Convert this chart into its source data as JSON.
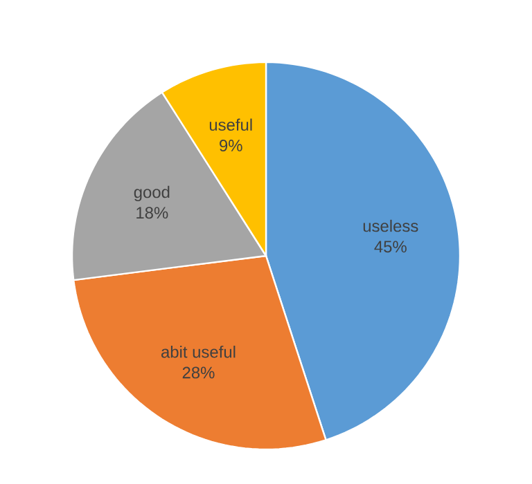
{
  "chart_data": {
    "type": "pie",
    "categories": [
      "useless",
      "abit useful",
      "good",
      "useful"
    ],
    "values": [
      45,
      28,
      18,
      9
    ],
    "value_labels": [
      "45%",
      "28%",
      "18%",
      "9%"
    ],
    "colors": [
      "#5b9bd5",
      "#ed7d31",
      "#a5a5a5",
      "#ffc000"
    ]
  }
}
